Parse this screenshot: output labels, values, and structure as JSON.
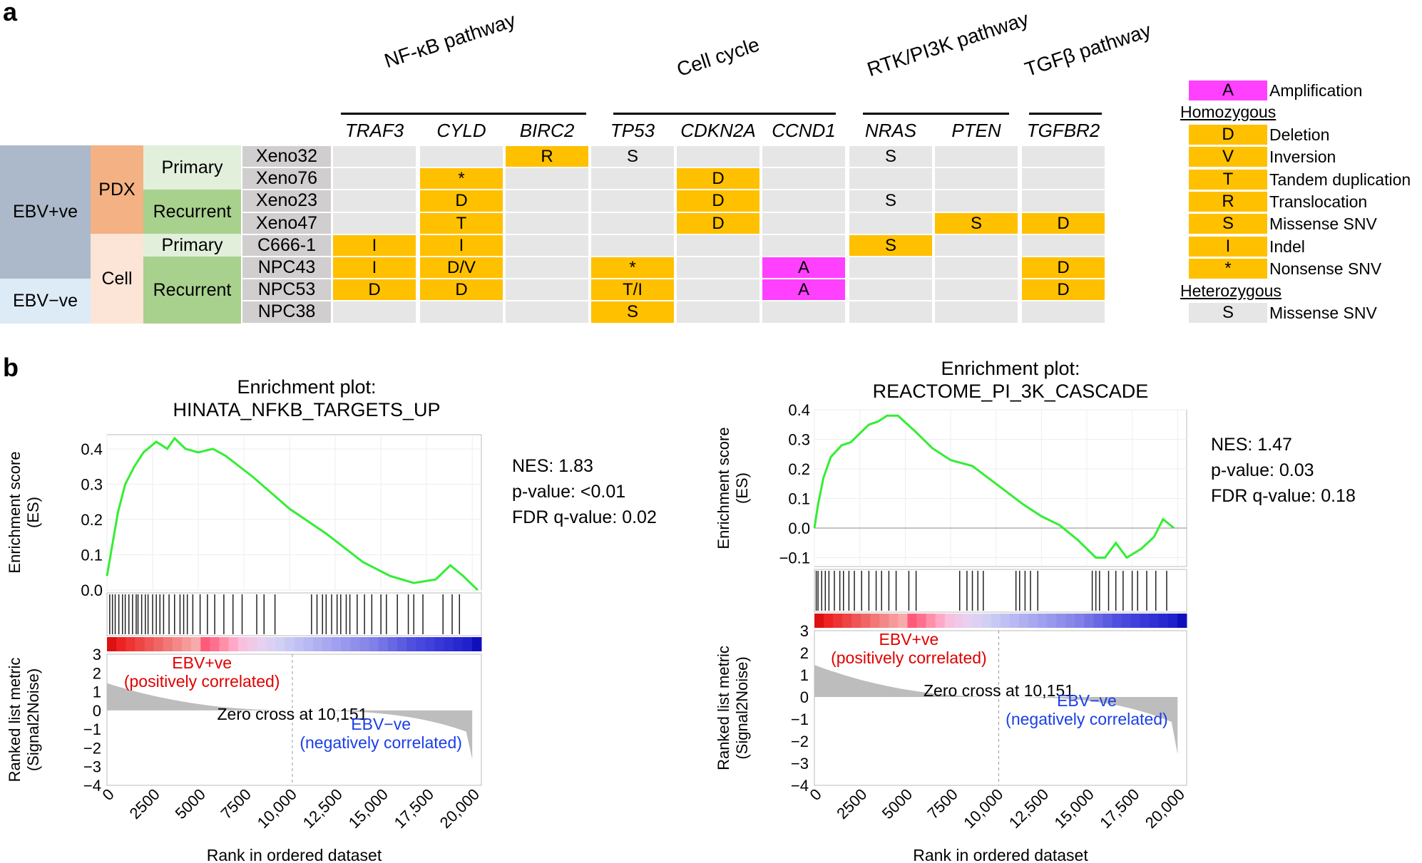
{
  "panels": {
    "a": "a",
    "b": "b"
  },
  "panel_a": {
    "pathways": [
      {
        "name": "NF-κB pathway"
      },
      {
        "name": "Cell cycle"
      },
      {
        "name": "RTK/PI3K pathway"
      },
      {
        "name": "TGFβ pathway"
      }
    ],
    "genes": [
      "TRAF3",
      "CYLD",
      "BIRC2",
      "TP53",
      "CDKN2A",
      "CCND1",
      "NRAS",
      "PTEN",
      "TGFBR2"
    ],
    "groups": {
      "ebv": [
        "EBV+ve",
        "EBV−ve"
      ],
      "model": [
        "PDX",
        "Cell"
      ],
      "stage": [
        "Primary",
        "Recurrent",
        "Primary",
        "Recurrent"
      ]
    },
    "samples": [
      "Xeno32",
      "Xeno76",
      "Xeno23",
      "Xeno47",
      "C666-1",
      "NPC43",
      "NPC53",
      "NPC38"
    ],
    "matrix": [
      [
        "",
        "",
        "R",
        "S",
        "",
        "",
        "S",
        "",
        ""
      ],
      [
        "",
        "*",
        "",
        "",
        "D",
        "",
        "",
        "",
        ""
      ],
      [
        "",
        "D",
        "",
        "",
        "D",
        "",
        "S",
        "",
        ""
      ],
      [
        "",
        "T",
        "",
        "",
        "D",
        "",
        "",
        "S",
        "D"
      ],
      [
        "I",
        "I",
        "",
        "",
        "",
        "",
        "S",
        "",
        ""
      ],
      [
        "I",
        "D/V",
        "",
        "*",
        "",
        "A",
        "",
        "",
        "D"
      ],
      [
        "D",
        "D",
        "",
        "T/I",
        "",
        "A",
        "",
        "",
        "D"
      ],
      [
        "",
        "",
        "",
        "S",
        "",
        "",
        "",
        "",
        ""
      ]
    ],
    "matrix_types": [
      [
        "g",
        "g",
        "o",
        "g",
        "g",
        "g",
        "g",
        "g",
        "g"
      ],
      [
        "g",
        "o",
        "g",
        "g",
        "o",
        "g",
        "g",
        "g",
        "g"
      ],
      [
        "g",
        "o",
        "g",
        "g",
        "o",
        "g",
        "g",
        "g",
        "g"
      ],
      [
        "g",
        "o",
        "g",
        "g",
        "o",
        "g",
        "g",
        "o",
        "o"
      ],
      [
        "o",
        "o",
        "g",
        "g",
        "g",
        "g",
        "o",
        "g",
        "g"
      ],
      [
        "o",
        "o",
        "g",
        "o",
        "g",
        "m",
        "g",
        "g",
        "o"
      ],
      [
        "o",
        "o",
        "g",
        "o",
        "g",
        "m",
        "g",
        "g",
        "o"
      ],
      [
        "g",
        "g",
        "g",
        "o",
        "g",
        "g",
        "g",
        "g",
        "g"
      ]
    ],
    "legend": {
      "amplification": {
        "code": "A",
        "label": "Amplification"
      },
      "homozygous_title": "Homozygous",
      "homozygous": [
        {
          "code": "D",
          "label": "Deletion"
        },
        {
          "code": "V",
          "label": "Inversion"
        },
        {
          "code": "T",
          "label": "Tandem duplication"
        },
        {
          "code": "R",
          "label": "Translocation"
        },
        {
          "code": "S",
          "label": "Missense SNV"
        },
        {
          "code": "I",
          "label": "Indel"
        },
        {
          "code": "*",
          "label": "Nonsense SNV"
        }
      ],
      "heterozygous_title": "Heterozygous",
      "heterozygous": [
        {
          "code": "S",
          "label": "Missense SNV"
        }
      ]
    }
  },
  "colors": {
    "orange": "#FFC000",
    "magenta": "#FF40FF",
    "grey": "#E6E6E6",
    "ebvpos": "#ACB9CA",
    "ebvneg": "#DDEBF7",
    "pdx": "#F4B183",
    "cell": "#FCE4D6",
    "primary": "#E2EFDA",
    "recurrent": "#A9D18E",
    "sample": "#D0CECE",
    "es_line": "#33EE33"
  },
  "chart_data": [
    {
      "type": "line",
      "title": "Enrichment plot:",
      "subtitle": "HINATA_NFKB_TARGETS_UP",
      "ylabel": "Enrichment score (ES)",
      "ylabel_lines": [
        "Enrichment score",
        "(ES)"
      ],
      "xlabel": "Rank in ordered dataset",
      "ylim": [
        0,
        0.44
      ],
      "yticks": [
        0.0,
        0.1,
        0.2,
        0.3,
        0.4
      ],
      "ytick_labels": [
        "0.0",
        "0.1",
        "0.2",
        "0.3",
        "0.4"
      ],
      "xlim": [
        0,
        20500
      ],
      "xticks": [
        0,
        2500,
        5000,
        7500,
        10000,
        12500,
        15000,
        17500,
        20000
      ],
      "xtick_labels": [
        "0",
        "2500",
        "5000",
        "7500",
        "10,000",
        "12,500",
        "15,000",
        "17,500",
        "20,000"
      ],
      "es_points": [
        [
          0,
          0.04
        ],
        [
          200,
          0.1
        ],
        [
          600,
          0.22
        ],
        [
          1000,
          0.3
        ],
        [
          1500,
          0.35
        ],
        [
          2000,
          0.39
        ],
        [
          2700,
          0.42
        ],
        [
          3300,
          0.4
        ],
        [
          3700,
          0.43
        ],
        [
          4300,
          0.4
        ],
        [
          5000,
          0.39
        ],
        [
          5800,
          0.4
        ],
        [
          6500,
          0.38
        ],
        [
          8000,
          0.32
        ],
        [
          10000,
          0.23
        ],
        [
          12000,
          0.16
        ],
        [
          14000,
          0.08
        ],
        [
          15500,
          0.04
        ],
        [
          16800,
          0.02
        ],
        [
          18000,
          0.03
        ],
        [
          18800,
          0.07
        ],
        [
          19500,
          0.04
        ],
        [
          20300,
          0.0
        ]
      ],
      "hits": [
        150,
        300,
        450,
        650,
        850,
        1000,
        1200,
        1400,
        1600,
        1700,
        1900,
        2100,
        2250,
        2500,
        2700,
        2900,
        3100,
        3400,
        3700,
        4000,
        4200,
        4400,
        4700,
        5100,
        5500,
        5900,
        6400,
        6900,
        7400,
        8200,
        8600,
        9200,
        11200,
        11500,
        11800,
        12000,
        12300,
        12600,
        12800,
        13100,
        13300,
        13700,
        14100,
        14500,
        15000,
        15300,
        15900,
        16500,
        16800,
        17300,
        18400,
        18900,
        19300
      ],
      "metric_ylim": [
        -4,
        3
      ],
      "metric_yticks": [
        3,
        2,
        1,
        0,
        -1,
        -2,
        -3,
        -4
      ],
      "metric_ytick_labels": [
        "3",
        "2",
        "1",
        "0",
        "−1",
        "−2",
        "−3",
        "−4"
      ],
      "metric_ylabel_lines": [
        "Ranked list metric",
        "(Signal2Noise)"
      ],
      "zero_cross": 10151,
      "zero_cross_label": "Zero cross at 10,151",
      "pos_label": [
        "EBV+ve",
        "(positively correlated)"
      ],
      "neg_label": [
        "EBV−ve",
        "(negatively correlated)"
      ],
      "stats": [
        "NES: 1.83",
        "p-value: <0.01",
        "FDR q-value: 0.02"
      ]
    },
    {
      "type": "line",
      "title": "Enrichment plot:",
      "subtitle": "REACTOME_PI_3K_CASCADE",
      "ylabel": "Enrichment score (ES)",
      "ylabel_lines": [
        "Enrichment score",
        "(ES)"
      ],
      "xlabel": "Rank in ordered dataset",
      "ylim": [
        -0.13,
        0.4
      ],
      "yticks": [
        -0.1,
        0.0,
        0.1,
        0.2,
        0.3,
        0.4
      ],
      "ytick_labels": [
        "−0.1",
        "0.0",
        "0.1",
        "0.2",
        "0.3",
        "0.4"
      ],
      "xlim": [
        0,
        20500
      ],
      "xticks": [
        0,
        2500,
        5000,
        7500,
        10000,
        12500,
        15000,
        17500,
        20000
      ],
      "xtick_labels": [
        "0",
        "2500",
        "5000",
        "7500",
        "10,000",
        "12,500",
        "15,000",
        "17,500",
        "20,000"
      ],
      "es_points": [
        [
          0,
          0.0
        ],
        [
          200,
          0.08
        ],
        [
          500,
          0.17
        ],
        [
          900,
          0.24
        ],
        [
          1500,
          0.28
        ],
        [
          2000,
          0.29
        ],
        [
          2500,
          0.32
        ],
        [
          3000,
          0.35
        ],
        [
          3500,
          0.36
        ],
        [
          4000,
          0.38
        ],
        [
          4600,
          0.38
        ],
        [
          5500,
          0.33
        ],
        [
          6500,
          0.27
        ],
        [
          7500,
          0.23
        ],
        [
          8700,
          0.21
        ],
        [
          10000,
          0.15
        ],
        [
          11500,
          0.08
        ],
        [
          12500,
          0.04
        ],
        [
          13500,
          0.01
        ],
        [
          14500,
          -0.04
        ],
        [
          15500,
          -0.1
        ],
        [
          16000,
          -0.1
        ],
        [
          16600,
          -0.05
        ],
        [
          17200,
          -0.1
        ],
        [
          18000,
          -0.07
        ],
        [
          18700,
          -0.03
        ],
        [
          19200,
          0.03
        ],
        [
          19800,
          0.0
        ]
      ],
      "hits": [
        100,
        200,
        400,
        600,
        800,
        1100,
        1400,
        1600,
        1900,
        2200,
        2600,
        3000,
        3400,
        3700,
        4100,
        4500,
        5200,
        5600,
        8000,
        8400,
        8700,
        9000,
        9300,
        11100,
        11300,
        11600,
        11900,
        12300,
        15300,
        15500,
        15700,
        16200,
        16600,
        17000,
        17500,
        17800,
        18300,
        18800,
        19400
      ],
      "metric_ylim": [
        -4,
        3
      ],
      "metric_yticks": [
        3,
        2,
        1,
        0,
        -1,
        -2,
        -3,
        -4
      ],
      "metric_ytick_labels": [
        "3",
        "2",
        "1",
        "0",
        "−1",
        "−2",
        "−3",
        "−4"
      ],
      "metric_ylabel_lines": [
        "Ranked list metric",
        "(Signal2Noise)"
      ],
      "zero_cross": 10151,
      "zero_cross_label": "Zero cross at 10,151",
      "pos_label": [
        "EBV+ve",
        "(positively correlated)"
      ],
      "neg_label": [
        "EBV−ve",
        "(negatively correlated)"
      ],
      "stats": [
        "NES: 1.47",
        "p-value: 0.03",
        "FDR q-value: 0.18"
      ]
    }
  ]
}
